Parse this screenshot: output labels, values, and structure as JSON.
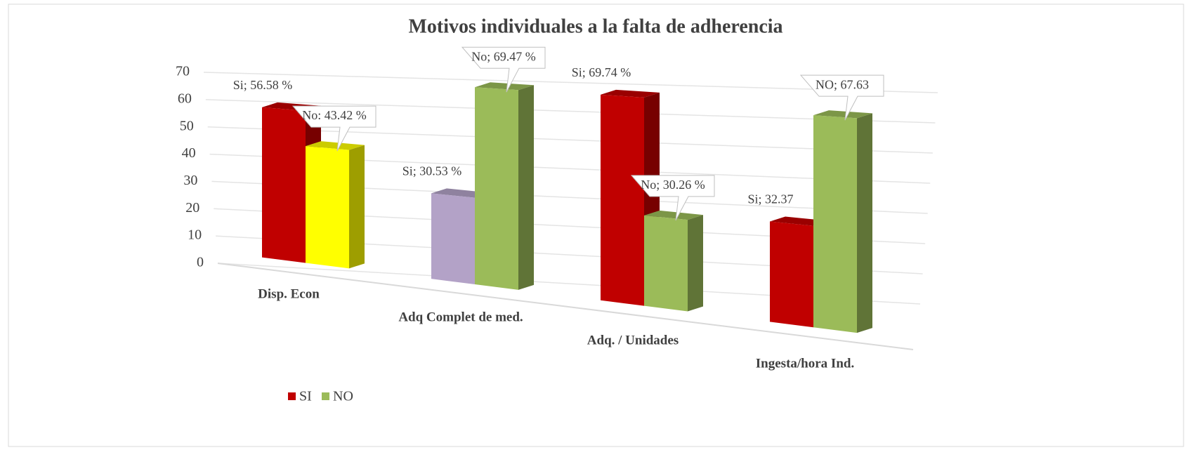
{
  "chart_data": {
    "type": "bar3d",
    "title": "Motivos individuales a la falta de adherencia",
    "categories": [
      "Disp. Econ",
      "Adq Complet de med.",
      "Adq. / Unidades",
      "Ingesta/hora Ind."
    ],
    "series": [
      {
        "name": "SI",
        "color": "#c00000",
        "point_colors": [
          "#c00000",
          "#b3a2c7",
          "#c00000",
          "#c00000"
        ],
        "values": [
          56.58,
          30.53,
          69.74,
          32.37
        ],
        "value_labels": [
          "Si; 56.58 %",
          "Si; 30.53 %",
          "Si; 69.74 %",
          "Si; 32.37"
        ]
      },
      {
        "name": "NO",
        "color": "#9bbb59",
        "point_colors": [
          "#ffff00",
          "#9bbb59",
          "#9bbb59",
          "#9bbb59"
        ],
        "values": [
          43.42,
          69.47,
          30.26,
          67.63
        ],
        "value_labels": [
          "No: 43.42 %",
          "No; 69.47 %",
          "No; 30.26 %",
          "NO; 67.63"
        ]
      }
    ],
    "ylim": [
      0,
      70
    ],
    "yticks": [
      0,
      10,
      20,
      30,
      40,
      50,
      60,
      70
    ],
    "grid": true,
    "legend": "bottom-left"
  }
}
